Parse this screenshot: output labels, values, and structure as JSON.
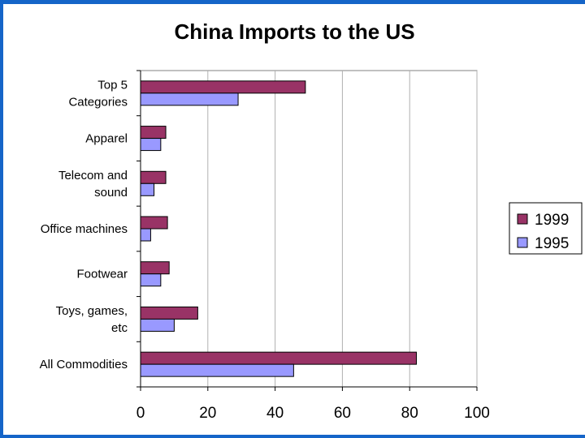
{
  "chart_data": {
    "type": "bar",
    "orientation": "horizontal",
    "title": "China Imports to the US",
    "categories": [
      [
        "Top 5",
        "Categories"
      ],
      [
        "Apparel"
      ],
      [
        "Telecom and",
        "sound"
      ],
      [
        "Office machines"
      ],
      [
        "Footwear"
      ],
      [
        "Toys, games,",
        "etc"
      ],
      [
        "All Commodities"
      ]
    ],
    "series": [
      {
        "name": "1999",
        "color": "#993366",
        "values": [
          49,
          7.5,
          7.5,
          8,
          8.5,
          17,
          82
        ]
      },
      {
        "name": "1995",
        "color": "#9999ff",
        "values": [
          29,
          6,
          4,
          3,
          6,
          10,
          45.5
        ]
      }
    ],
    "xlim": [
      0,
      100
    ],
    "xticks": [
      "0",
      "20",
      "40",
      "60",
      "80",
      "100"
    ],
    "grid": "vertical",
    "legend_position": "right"
  }
}
